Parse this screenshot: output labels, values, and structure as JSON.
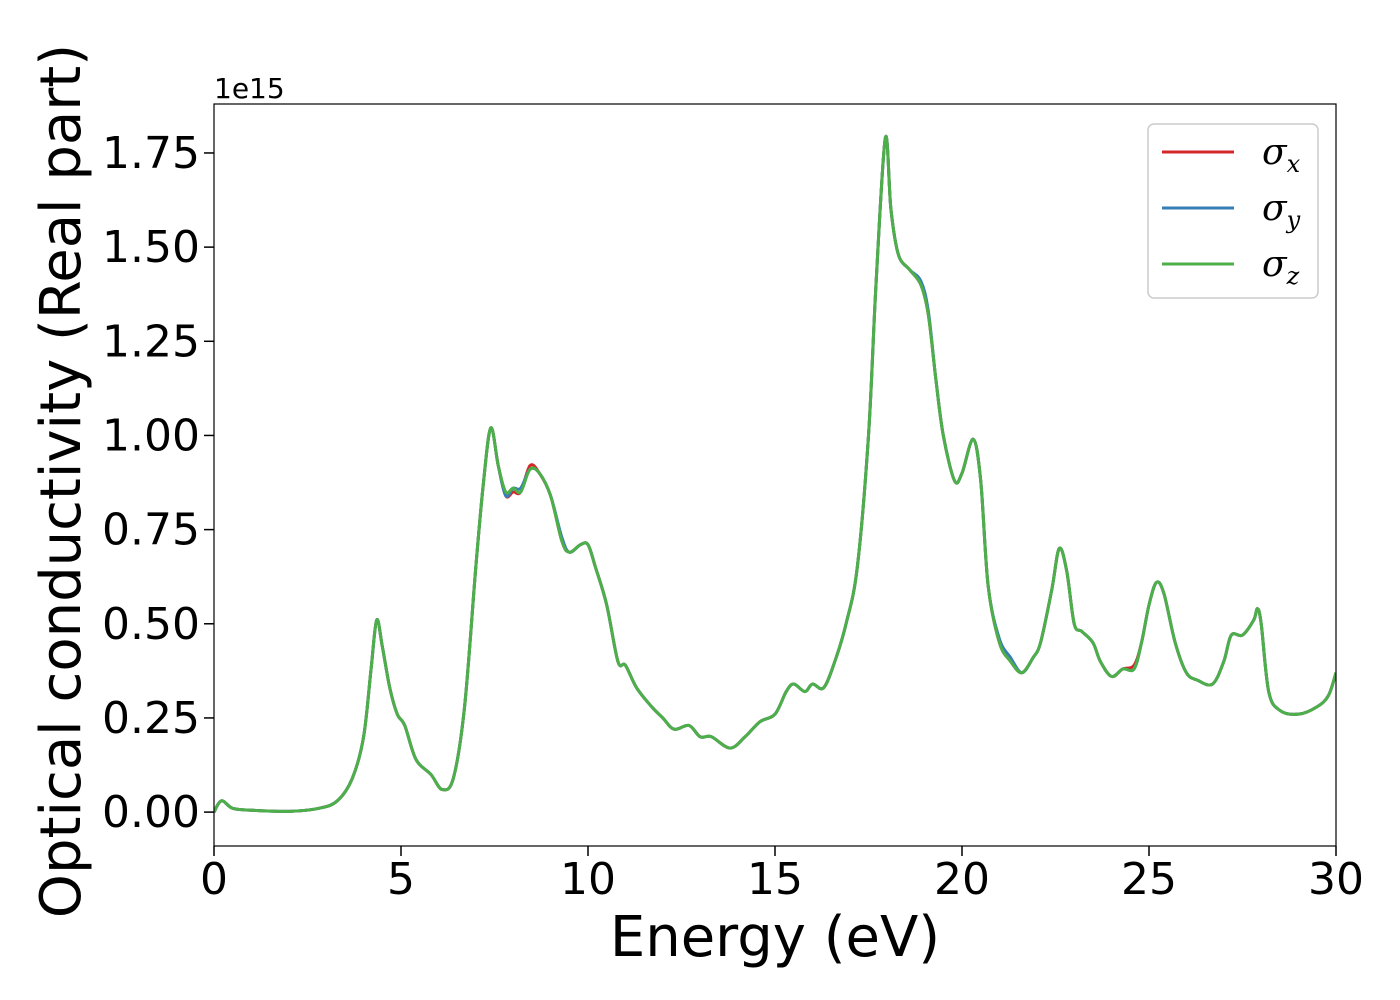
{
  "chart_data": {
    "type": "line",
    "title": "",
    "xlabel": "Energy (eV)",
    "ylabel": "Optical conductivity (Real part)",
    "y_offset_label": "1e15",
    "xlim": [
      0,
      30
    ],
    "ylim": [
      -0.09,
      1.88
    ],
    "x_ticks": [
      0,
      5,
      10,
      15,
      20,
      25,
      30
    ],
    "x_tick_labels": [
      "0",
      "5",
      "10",
      "15",
      "20",
      "25",
      "30"
    ],
    "y_ticks": [
      0.0,
      0.25,
      0.5,
      0.75,
      1.0,
      1.25,
      1.5,
      1.75
    ],
    "y_tick_labels": [
      "0.00",
      "0.25",
      "0.50",
      "0.75",
      "1.00",
      "1.25",
      "1.50",
      "1.75"
    ],
    "grid": false,
    "legend_position": "top-right",
    "x": [
      0,
      0.2,
      0.5,
      1.0,
      2.0,
      2.8,
      3.3,
      3.7,
      4.0,
      4.2,
      4.35,
      4.5,
      4.7,
      4.9,
      5.1,
      5.4,
      5.8,
      6.1,
      6.4,
      6.7,
      7.0,
      7.2,
      7.4,
      7.6,
      7.8,
      8.0,
      8.2,
      8.45,
      8.7,
      9.0,
      9.3,
      9.5,
      9.8,
      10.0,
      10.2,
      10.5,
      10.8,
      11.0,
      11.3,
      11.7,
      12.0,
      12.3,
      12.7,
      13.0,
      13.3,
      13.8,
      14.2,
      14.6,
      15.0,
      15.3,
      15.5,
      15.8,
      16.0,
      16.3,
      16.6,
      16.9,
      17.2,
      17.5,
      17.7,
      17.95,
      18.1,
      18.3,
      18.6,
      18.9,
      19.1,
      19.3,
      19.5,
      19.8,
      20.0,
      20.3,
      20.5,
      20.7,
      21.0,
      21.3,
      21.6,
      21.9,
      22.1,
      22.4,
      22.6,
      22.8,
      23.0,
      23.2,
      23.5,
      23.7,
      24.0,
      24.3,
      24.6,
      24.8,
      25.0,
      25.2,
      25.4,
      25.7,
      26.0,
      26.3,
      26.7,
      27.0,
      27.2,
      27.5,
      27.8,
      27.9,
      28.0,
      28.2,
      28.5,
      29.0,
      29.5,
      29.8,
      30.0
    ],
    "series": [
      {
        "name": "σx",
        "color": "#d62728",
        "values": [
          0.0,
          0.03,
          0.01,
          0.005,
          0.002,
          0.01,
          0.03,
          0.09,
          0.2,
          0.38,
          0.51,
          0.44,
          0.33,
          0.26,
          0.23,
          0.14,
          0.1,
          0.06,
          0.09,
          0.28,
          0.65,
          0.87,
          1.02,
          0.92,
          0.84,
          0.85,
          0.85,
          0.92,
          0.9,
          0.84,
          0.72,
          0.69,
          0.71,
          0.71,
          0.65,
          0.55,
          0.4,
          0.39,
          0.33,
          0.28,
          0.25,
          0.22,
          0.23,
          0.2,
          0.2,
          0.17,
          0.2,
          0.24,
          0.26,
          0.32,
          0.34,
          0.32,
          0.34,
          0.33,
          0.4,
          0.5,
          0.65,
          1.0,
          1.4,
          1.79,
          1.6,
          1.48,
          1.44,
          1.4,
          1.32,
          1.15,
          1.0,
          0.88,
          0.9,
          0.99,
          0.88,
          0.6,
          0.45,
          0.4,
          0.37,
          0.41,
          0.45,
          0.59,
          0.7,
          0.64,
          0.5,
          0.48,
          0.45,
          0.4,
          0.36,
          0.38,
          0.39,
          0.45,
          0.55,
          0.61,
          0.58,
          0.45,
          0.37,
          0.35,
          0.34,
          0.4,
          0.47,
          0.47,
          0.51,
          0.54,
          0.5,
          0.32,
          0.27,
          0.26,
          0.28,
          0.31,
          0.37
        ]
      },
      {
        "name": "σy",
        "color": "#377eb8",
        "values": [
          0.0,
          0.03,
          0.01,
          0.005,
          0.002,
          0.01,
          0.03,
          0.09,
          0.2,
          0.38,
          0.51,
          0.44,
          0.33,
          0.26,
          0.23,
          0.14,
          0.1,
          0.06,
          0.09,
          0.28,
          0.65,
          0.87,
          1.02,
          0.92,
          0.84,
          0.86,
          0.86,
          0.91,
          0.9,
          0.84,
          0.73,
          0.69,
          0.71,
          0.71,
          0.65,
          0.55,
          0.4,
          0.39,
          0.33,
          0.28,
          0.25,
          0.22,
          0.23,
          0.2,
          0.2,
          0.17,
          0.2,
          0.24,
          0.26,
          0.32,
          0.34,
          0.32,
          0.34,
          0.33,
          0.4,
          0.5,
          0.65,
          1.0,
          1.4,
          1.79,
          1.6,
          1.48,
          1.44,
          1.41,
          1.33,
          1.15,
          1.0,
          0.88,
          0.9,
          0.99,
          0.88,
          0.6,
          0.46,
          0.41,
          0.37,
          0.41,
          0.45,
          0.59,
          0.7,
          0.64,
          0.5,
          0.48,
          0.45,
          0.4,
          0.36,
          0.38,
          0.38,
          0.45,
          0.55,
          0.61,
          0.58,
          0.45,
          0.37,
          0.35,
          0.34,
          0.4,
          0.47,
          0.47,
          0.51,
          0.54,
          0.5,
          0.32,
          0.27,
          0.26,
          0.28,
          0.31,
          0.37
        ]
      },
      {
        "name": "σz",
        "color": "#4daf4a",
        "values": [
          0.0,
          0.03,
          0.01,
          0.005,
          0.002,
          0.01,
          0.03,
          0.09,
          0.2,
          0.38,
          0.51,
          0.44,
          0.33,
          0.26,
          0.23,
          0.14,
          0.1,
          0.06,
          0.09,
          0.28,
          0.65,
          0.87,
          1.02,
          0.92,
          0.85,
          0.86,
          0.85,
          0.91,
          0.9,
          0.84,
          0.72,
          0.69,
          0.71,
          0.71,
          0.65,
          0.55,
          0.4,
          0.39,
          0.33,
          0.28,
          0.25,
          0.22,
          0.23,
          0.2,
          0.2,
          0.17,
          0.2,
          0.24,
          0.26,
          0.32,
          0.34,
          0.32,
          0.34,
          0.33,
          0.4,
          0.5,
          0.65,
          1.0,
          1.4,
          1.79,
          1.6,
          1.48,
          1.44,
          1.4,
          1.32,
          1.15,
          1.0,
          0.88,
          0.9,
          0.99,
          0.88,
          0.6,
          0.45,
          0.4,
          0.37,
          0.41,
          0.45,
          0.59,
          0.7,
          0.64,
          0.5,
          0.48,
          0.45,
          0.4,
          0.36,
          0.38,
          0.38,
          0.45,
          0.55,
          0.61,
          0.58,
          0.45,
          0.37,
          0.35,
          0.34,
          0.4,
          0.47,
          0.47,
          0.51,
          0.54,
          0.5,
          0.32,
          0.27,
          0.26,
          0.28,
          0.31,
          0.37
        ]
      }
    ],
    "legend": [
      {
        "symbol": "σ",
        "sub": "x"
      },
      {
        "symbol": "σ",
        "sub": "y"
      },
      {
        "symbol": "σ",
        "sub": "z"
      }
    ]
  }
}
